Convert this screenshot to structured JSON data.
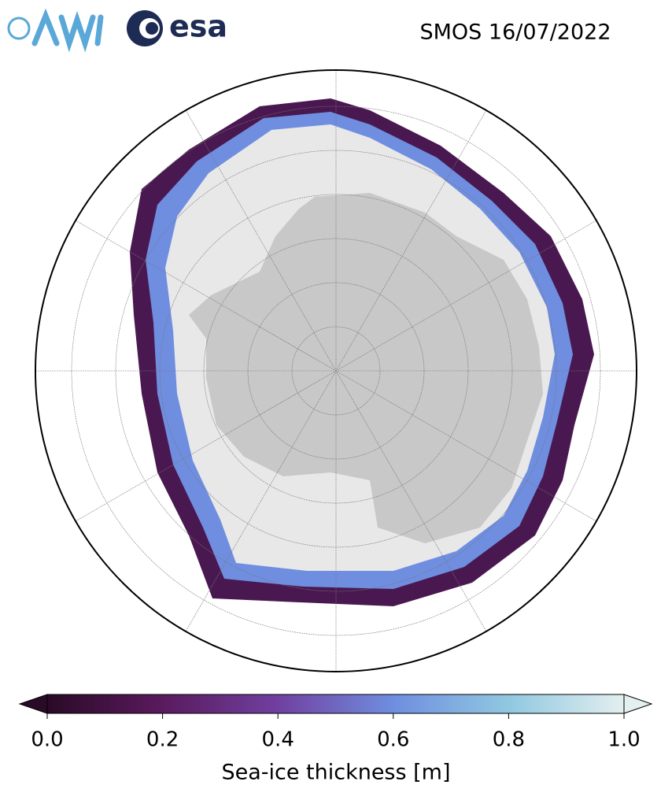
{
  "header": {
    "title": "SMOS 16/07/2022",
    "logos": [
      "esa"
    ]
  },
  "colorbar": {
    "label": "Sea-ice thickness [m]",
    "range": [
      0,
      1
    ],
    "ticks": [
      {
        "value": 0,
        "label": "0.0"
      },
      0.2,
      0.4,
      0.6,
      0.8,
      {
        "value": 1,
        "label": "1.0"
      }
    ]
  }
}
